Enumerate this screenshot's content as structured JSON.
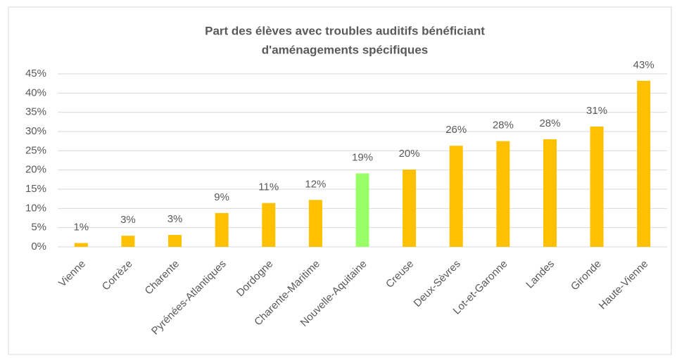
{
  "chart_data": {
    "type": "bar",
    "title": [
      "Part des élèves avec troubles auditifs bénéficiant",
      "d'aménagements spécifiques"
    ],
    "categories": [
      "Vienne",
      "Corrèze",
      "Charente",
      "Pyrénées-Atlantiques",
      "Dordogne",
      "Charente-Maritime",
      "Nouvelle-Aquitaine",
      "Creuse",
      "Deux-Sèvres",
      "Lot-et-Garonne",
      "Landes",
      "Gironde",
      "Haute-Vienne"
    ],
    "values": [
      1.0,
      2.9,
      3.1,
      8.8,
      11.4,
      12.2,
      19.1,
      20.1,
      26.3,
      27.5,
      28.0,
      31.3,
      43.2
    ],
    "value_labels": [
      "1%",
      "3%",
      "3%",
      "9%",
      "11%",
      "12%",
      "19%",
      "20%",
      "26%",
      "28%",
      "28%",
      "31%",
      "43%"
    ],
    "colors": [
      "#ffc000",
      "#ffc000",
      "#ffc000",
      "#ffc000",
      "#ffc000",
      "#ffc000",
      "#99ff66",
      "#ffc000",
      "#ffc000",
      "#ffc000",
      "#ffc000",
      "#ffc000",
      "#ffc000"
    ],
    "ylim": [
      0,
      45
    ],
    "yticks": [
      {
        "value": 0,
        "label": "0%"
      },
      {
        "value": 5,
        "label": "5%"
      },
      {
        "value": 10,
        "label": "10%"
      },
      {
        "value": 15,
        "label": "15%"
      },
      {
        "value": 20,
        "label": "20%"
      },
      {
        "value": 25,
        "label": "25%"
      },
      {
        "value": 30,
        "label": "30%"
      },
      {
        "value": 35,
        "label": "35%"
      },
      {
        "value": 40,
        "label": "40%"
      },
      {
        "value": 45,
        "label": "45%"
      }
    ],
    "grid": true
  }
}
